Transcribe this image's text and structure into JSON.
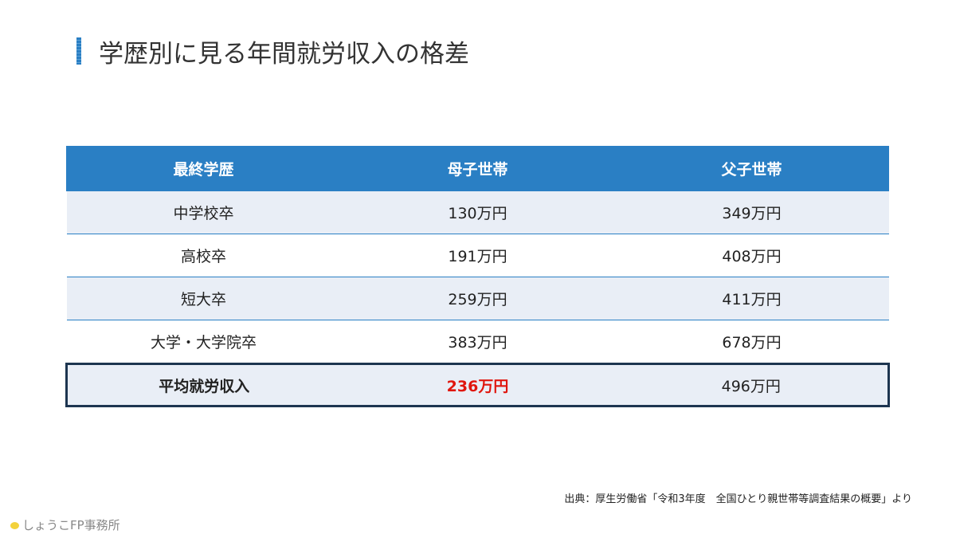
{
  "header": {
    "title": "学歴別に見る年間就労収入の格差"
  },
  "table": {
    "columns": [
      "最終学歴",
      "母子世帯",
      "父子世帯"
    ],
    "rows": [
      [
        "中学校卒",
        "130万円",
        "349万円"
      ],
      [
        "高校卒",
        "191万円",
        "408万円"
      ],
      [
        "短大卒",
        "259万円",
        "411万円"
      ],
      [
        "大学・大学院卒",
        "383万円",
        "678万円"
      ],
      [
        "平均就労収入",
        "236万円",
        "496万円"
      ]
    ]
  },
  "source": "出典：厚生労働省「令和3年度　全国ひとり親世帯等調査結果の概要」より",
  "footer": {
    "brand": "しょうこFP事務所"
  }
}
